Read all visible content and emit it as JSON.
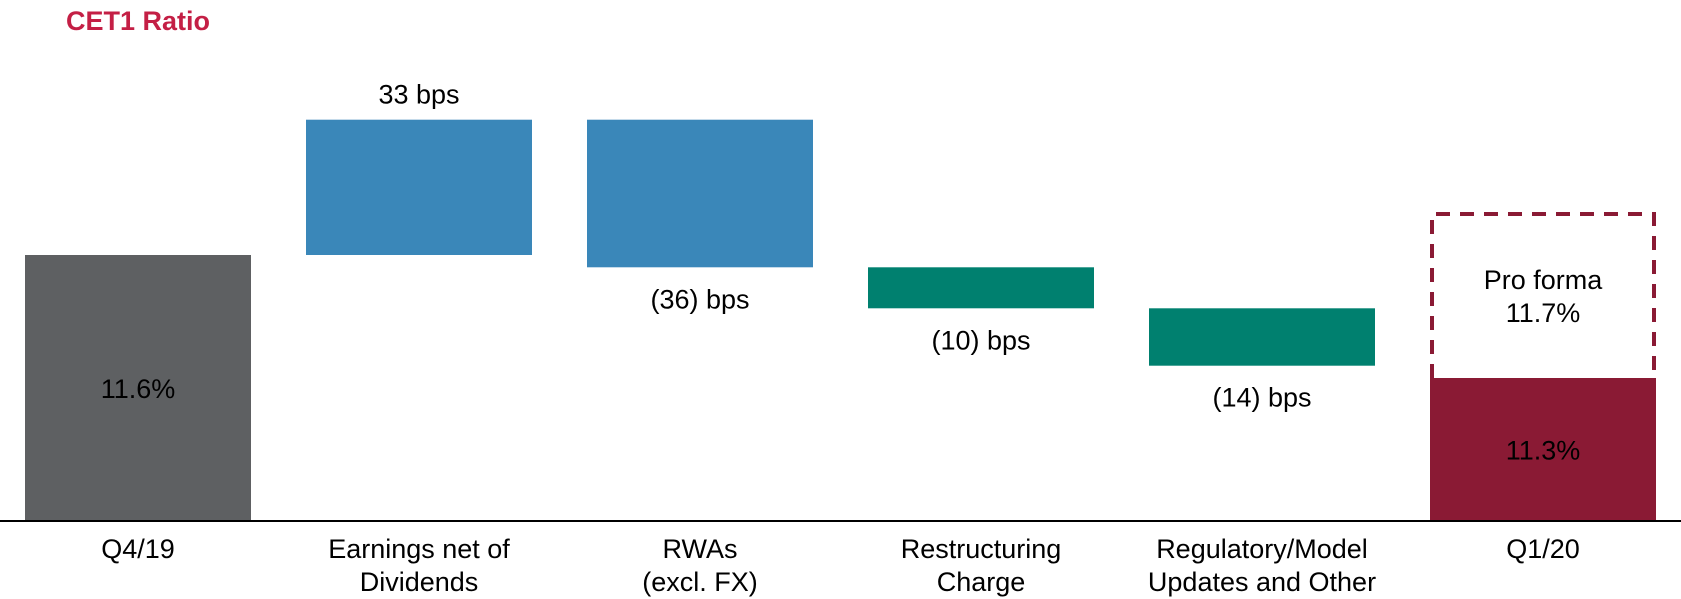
{
  "chart_data": {
    "type": "waterfall",
    "title": "CET1 Ratio",
    "unit": "%",
    "categories": [
      "Q4/19",
      "Earnings net of\nDividends",
      "RWAs\n(excl. FX)",
      "Restructuring\nCharge",
      "Regulatory/Model\nUpdates and Other",
      "Q1/20"
    ],
    "start": {
      "category": "Q4/19",
      "value": 11.6,
      "label": "11.6%",
      "color": "#5E6062"
    },
    "steps": [
      {
        "category": "Earnings net of Dividends",
        "bps": 33,
        "label": "33 bps",
        "color": "#3A87B9"
      },
      {
        "category": "RWAs (excl. FX)",
        "bps": -36,
        "label": "(36) bps",
        "color": "#3A87B9"
      },
      {
        "category": "Restructuring Charge",
        "bps": -10,
        "label": "(10) bps",
        "color": "#00806F"
      },
      {
        "category": "Regulatory/Model Updates and Other",
        "bps": -14,
        "label": "(14) bps",
        "color": "#00806F"
      }
    ],
    "end": {
      "category": "Q1/20",
      "value": 11.3,
      "label": "11.3%",
      "color": "#8A1A34"
    },
    "pro_forma": {
      "value": 11.7,
      "label": "Pro forma\n11.7%",
      "border_color": "#8A1A34",
      "style": "dashed"
    },
    "title_color": "#C41F45",
    "axis_color": "#000000"
  }
}
